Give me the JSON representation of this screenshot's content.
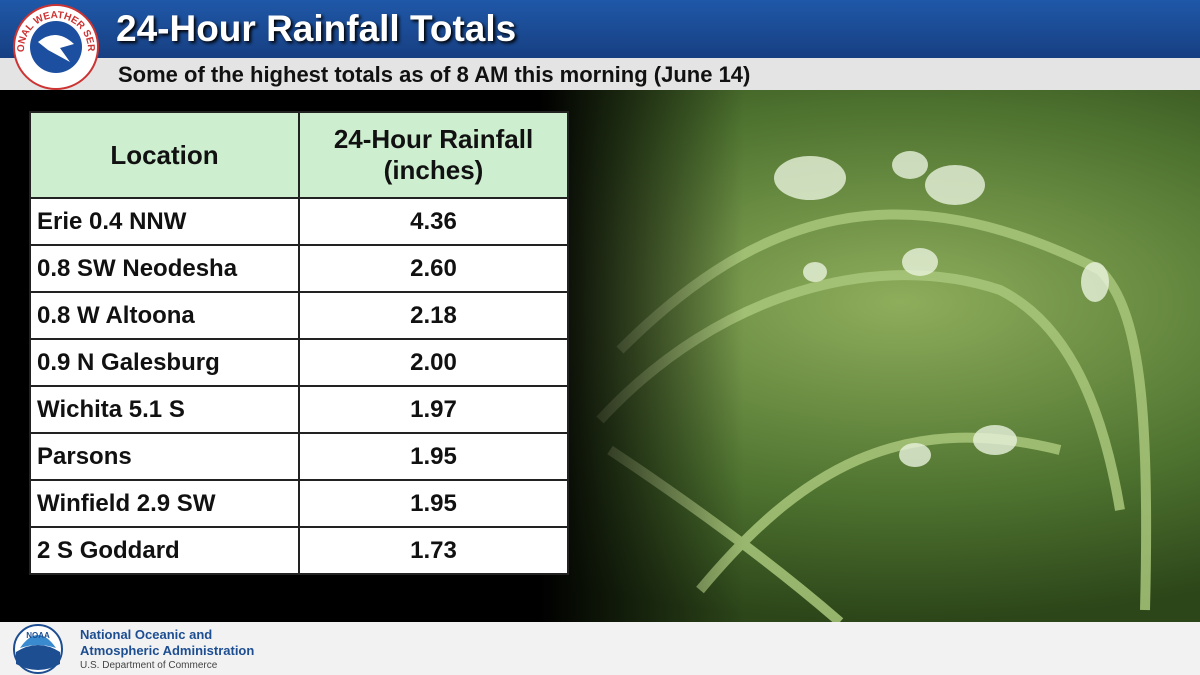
{
  "header": {
    "title": "24-Hour Rainfall Totals",
    "subtitle": "Some of the highest totals as of 8 AM this morning (June 14)",
    "logo_text": "NATIONAL WEATHER SERVICE"
  },
  "table": {
    "columns": [
      "Location",
      "24-Hour Rainfall (inches)"
    ],
    "rows": [
      [
        "Erie 0.4 NNW",
        "4.36"
      ],
      [
        "0.8 SW Neodesha",
        "2.60"
      ],
      [
        "0.8 W Altoona",
        "2.18"
      ],
      [
        "0.9 N Galesburg",
        "2.00"
      ],
      [
        "Wichita 5.1 S",
        "1.97"
      ],
      [
        "Parsons",
        "1.95"
      ],
      [
        "Winfield 2.9 SW",
        "1.95"
      ],
      [
        "2 S Goddard",
        "1.73"
      ]
    ]
  },
  "footer": {
    "logo_text": "NOAA",
    "org_line1": "National Oceanic and",
    "org_line2": "Atmospheric Administration",
    "department": "U.S. Department of Commerce"
  }
}
